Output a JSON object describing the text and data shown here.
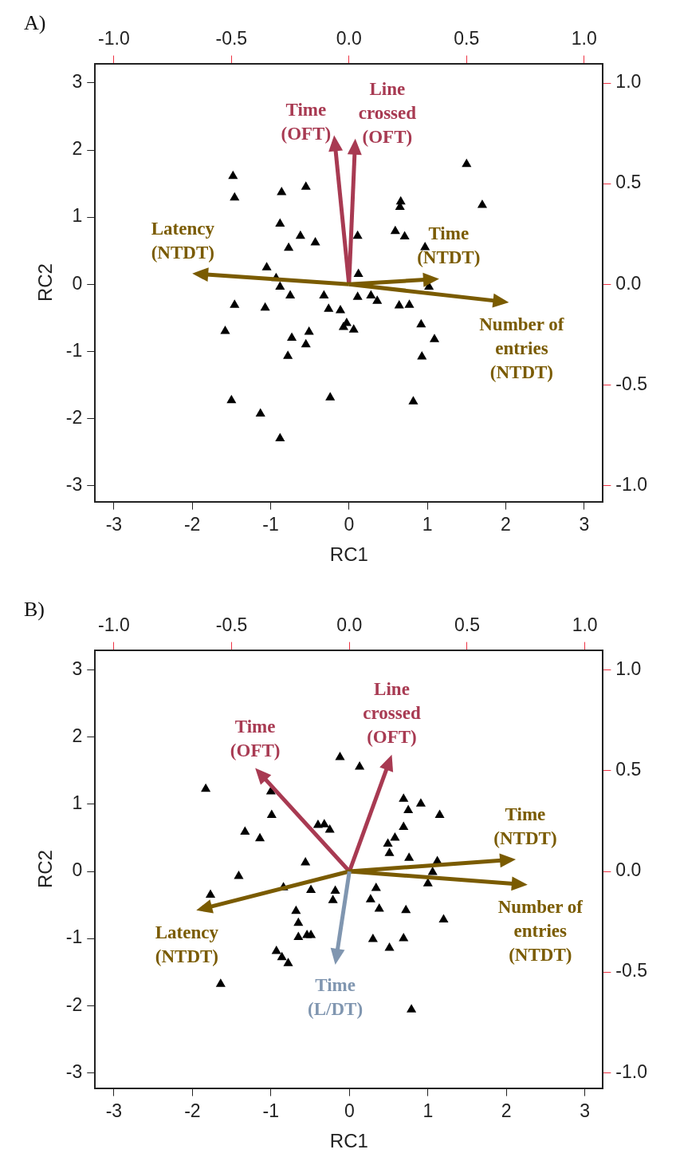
{
  "chart_data": [
    {
      "type": "scatter",
      "title": "A)",
      "xlabel": "RC1",
      "ylabel": "RC2",
      "marker": "triangle",
      "color": "#000000",
      "xlim": [
        -3.24,
        3.24
      ],
      "ylim": [
        -3.24,
        3.29
      ],
      "xticks": [
        -3,
        -2,
        -1,
        0,
        1,
        2,
        3
      ],
      "yticks": [
        -3,
        -2,
        -1,
        0,
        1,
        2,
        3
      ],
      "x2lim": [
        -1.08,
        1.08
      ],
      "x2ticks": [
        {
          "value": -1,
          "label": "-1.0"
        },
        {
          "value": -0.5,
          "label": "-0.5"
        },
        {
          "value": 0,
          "label": "0.0"
        },
        {
          "value": 0.5,
          "label": "0.5"
        },
        {
          "value": 1,
          "label": "1.0"
        }
      ],
      "y2lim": [
        -1.08,
        1.097
      ],
      "y2ticks": [
        {
          "value": -1,
          "label": "-1.0"
        },
        {
          "value": -0.5,
          "label": "-0.5"
        },
        {
          "value": 0,
          "label": "0.0"
        },
        {
          "value": 0.5,
          "label": "0.5"
        },
        {
          "value": 1,
          "label": "1.0"
        }
      ],
      "x": [
        -1.48,
        -1.46,
        -0.86,
        -0.55,
        -0.88,
        -0.62,
        -0.43,
        -0.77,
        -1.05,
        -0.93,
        -0.88,
        -0.75,
        -0.32,
        -1.46,
        -1.07,
        -0.26,
        -0.11,
        -0.03,
        -0.07,
        0.06,
        -1.58,
        -0.51,
        -0.73,
        -0.55,
        -0.78,
        -1.5,
        -1.13,
        -0.24,
        -0.88,
        0.11,
        0.66,
        0.65,
        1.5,
        1.7,
        0.59,
        0.71,
        0.97,
        0.12,
        1.02,
        0.11,
        0.28,
        0.36,
        0.64,
        0.77,
        0.92,
        1.09,
        0.93,
        0.82
      ],
      "values": [
        1.61,
        1.29,
        1.37,
        1.45,
        0.9,
        0.72,
        0.62,
        0.54,
        0.25,
        0.09,
        -0.04,
        -0.17,
        -0.17,
        -0.31,
        -0.35,
        -0.37,
        -0.39,
        -0.58,
        -0.64,
        -0.68,
        -0.7,
        -0.71,
        -0.8,
        -0.9,
        -1.07,
        -1.73,
        -1.93,
        -1.69,
        -2.3,
        0.72,
        1.23,
        1.15,
        1.79,
        1.18,
        0.79,
        0.71,
        0.55,
        0.15,
        -0.04,
        -0.19,
        -0.17,
        -0.25,
        -0.32,
        -0.31,
        -0.6,
        -0.82,
        -1.08,
        -1.75
      ],
      "annotations": [
        "Time (OFT)",
        "Line crossed (OFT)",
        "Latency (NTDT)",
        "Time (NTDT)",
        "Number of entries (NTDT)"
      ],
      "legend": false
    },
    {
      "type": "scatter",
      "title": "B)",
      "xlabel": "RC1",
      "ylabel": "RC2",
      "marker": "triangle",
      "color": "#000000",
      "xlim": [
        -3.24,
        3.23
      ],
      "ylim": [
        -3.23,
        3.3
      ],
      "xticks": [
        -3,
        -2,
        -1,
        0,
        1,
        2,
        3
      ],
      "yticks": [
        -3,
        -2,
        -1,
        0,
        1,
        2,
        3
      ],
      "x2lim": [
        -1.08,
        1.077
      ],
      "x2ticks": [
        {
          "value": -1,
          "label": "-1.0"
        },
        {
          "value": -0.5,
          "label": "-0.5"
        },
        {
          "value": 0,
          "label": "0.0"
        },
        {
          "value": 0.5,
          "label": "0.5"
        },
        {
          "value": 1,
          "label": "1.0"
        }
      ],
      "y2lim": [
        -1.077,
        1.1
      ],
      "y2ticks": [
        {
          "value": -1,
          "label": "-1.0"
        },
        {
          "value": -0.5,
          "label": "-0.5"
        },
        {
          "value": 0,
          "label": "0.0"
        },
        {
          "value": 0.5,
          "label": "0.5"
        },
        {
          "value": 1,
          "label": "1.0"
        }
      ],
      "x": [
        -1.83,
        -1.0,
        -0.99,
        -1.33,
        -1.14,
        -0.4,
        -0.32,
        -0.25,
        -0.56,
        -1.41,
        -0.12,
        -0.84,
        -0.49,
        -0.18,
        -0.21,
        -1.77,
        -0.68,
        -0.65,
        -0.65,
        -0.54,
        -0.49,
        -0.93,
        -0.86,
        -0.78,
        -1.64,
        0.13,
        0.69,
        0.91,
        0.75,
        1.15,
        0.69,
        0.58,
        0.49,
        0.51,
        0.76,
        1.12,
        1.06,
        1.0,
        0.34,
        0.27,
        0.38,
        0.72,
        1.2,
        0.3,
        0.51,
        0.69,
        0.79
      ],
      "values": [
        1.23,
        1.19,
        0.84,
        0.59,
        0.49,
        0.69,
        0.7,
        0.62,
        0.13,
        -0.07,
        1.7,
        -0.24,
        -0.28,
        -0.29,
        -0.43,
        -0.35,
        -0.59,
        -0.77,
        -0.98,
        -0.95,
        -0.95,
        -1.19,
        -1.28,
        -1.37,
        -1.68,
        1.56,
        1.08,
        1.01,
        0.91,
        0.84,
        0.66,
        0.5,
        0.41,
        0.27,
        0.2,
        0.15,
        -0.01,
        -0.18,
        -0.25,
        -0.42,
        -0.56,
        -0.58,
        -0.72,
        -1.01,
        -1.14,
        -1.0,
        -2.06
      ],
      "annotations": [
        "Time (OFT)",
        "Line crossed (OFT)",
        "Latency (NTDT)",
        "Time (NTDT)",
        "Number of entries (NTDT)",
        "Time (L/DT)"
      ],
      "legend": false
    }
  ]
}
